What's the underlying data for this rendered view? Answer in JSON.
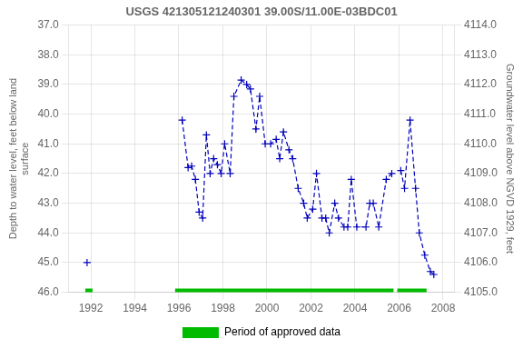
{
  "chart_data": {
    "type": "line",
    "title": "USGS 421305121240301 39.00S/11.00E-03BDC01",
    "ylabel": "Depth to water level, feet below land\nsurface",
    "y2label": "Groundwater level above NGVD 1929, feet",
    "xlim": [
      1991.0,
      2008.5
    ],
    "xticks": [
      1992,
      1994,
      1996,
      1998,
      2000,
      2002,
      2004,
      2006,
      2008
    ],
    "ylim": [
      46.0,
      37.0
    ],
    "yticks": [
      {
        "value": 37.0,
        "label": "37.0"
      },
      {
        "value": 38.0,
        "label": "38.0"
      },
      {
        "value": 39.0,
        "label": "39.0"
      },
      {
        "value": 40.0,
        "label": "40.0"
      },
      {
        "value": 41.0,
        "label": "41.0"
      },
      {
        "value": 42.0,
        "label": "42.0"
      },
      {
        "value": 43.0,
        "label": "43.0"
      },
      {
        "value": 44.0,
        "label": "44.0"
      },
      {
        "value": 45.0,
        "label": "45.0"
      },
      {
        "value": 46.0,
        "label": "46.0"
      }
    ],
    "y2lim": [
      4105.0,
      4114.0
    ],
    "y2ticks": [
      {
        "value": 4105.0,
        "label": "4105.0"
      },
      {
        "value": 4106.0,
        "label": "4106.0"
      },
      {
        "value": 4107.0,
        "label": "4107.0"
      },
      {
        "value": 4108.0,
        "label": "4108.0"
      },
      {
        "value": 4109.0,
        "label": "4109.0"
      },
      {
        "value": 4110.0,
        "label": "4110.0"
      },
      {
        "value": 4111.0,
        "label": "4111.0"
      },
      {
        "value": 4112.0,
        "label": "4112.0"
      },
      {
        "value": 4113.0,
        "label": "4113.0"
      },
      {
        "value": 4114.0,
        "label": "4114.0"
      }
    ],
    "grid": true,
    "legend": "bottom",
    "series": [
      {
        "type": "line",
        "color": "#0000bb",
        "marker": "plus",
        "line_style": "dashed",
        "x": [
          1991.83,
          null,
          1996.15,
          1996.42,
          1996.58,
          1996.75,
          1996.92,
          1997.08,
          1997.25,
          1997.42,
          1997.58,
          1997.75,
          1997.92,
          1998.08,
          1998.33,
          1998.5,
          1998.83,
          1999.08,
          1999.25,
          1999.5,
          1999.67,
          1999.92,
          2000.17,
          2000.42,
          2000.58,
          2000.75,
          2001.0,
          2001.17,
          2001.42,
          2001.67,
          2001.83,
          2002.08,
          2002.25,
          2002.5,
          2002.67,
          2002.83,
          2003.08,
          2003.25,
          2003.5,
          2003.67,
          2003.83,
          2004.08,
          2004.5,
          2004.67,
          2004.83,
          2005.08,
          2005.42,
          2005.67,
          null,
          2006.08,
          2006.25,
          2006.5,
          2006.75,
          2006.92,
          2007.17,
          2007.42,
          2007.58
        ],
        "values": [
          45.0,
          null,
          40.2,
          41.8,
          41.75,
          42.2,
          43.3,
          43.5,
          40.7,
          42.0,
          41.5,
          41.7,
          42.0,
          41.0,
          42.0,
          39.4,
          38.85,
          39.0,
          39.15,
          40.5,
          39.4,
          41.0,
          41.0,
          40.85,
          41.5,
          40.6,
          41.2,
          41.5,
          42.5,
          43.0,
          43.5,
          43.2,
          42.0,
          43.5,
          43.5,
          44.0,
          43.0,
          43.5,
          43.8,
          43.8,
          42.2,
          43.8,
          43.8,
          43.0,
          43.0,
          43.8,
          42.2,
          42.0,
          null,
          41.9,
          42.5,
          40.2,
          42.5,
          44.0,
          44.75,
          45.3,
          45.4
        ]
      },
      {
        "name": "Period of approved data",
        "type": "span",
        "color": "#00bb00",
        "ranges": [
          [
            1991.75,
            1992.08
          ],
          [
            1995.83,
            2005.75
          ],
          [
            2005.92,
            2007.25
          ]
        ]
      }
    ]
  }
}
